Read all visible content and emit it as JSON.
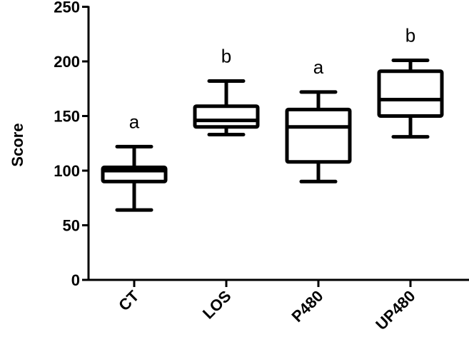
{
  "chart_data": {
    "type": "box",
    "title": "",
    "xlabel": "",
    "ylabel": "Score",
    "ylim": [
      0,
      250
    ],
    "yticks": [
      0,
      50,
      100,
      150,
      200,
      250
    ],
    "grid": false,
    "legend": null,
    "categories": [
      "CT",
      "LOS",
      "P480",
      "UP480"
    ],
    "series": [
      {
        "name": "CT",
        "whisker_low": 64,
        "q1": 90,
        "median": 100,
        "q3": 103,
        "whisker_high": 122,
        "significance": "a"
      },
      {
        "name": "LOS",
        "whisker_low": 133,
        "q1": 140,
        "median": 146,
        "q3": 159,
        "whisker_high": 182,
        "significance": "b"
      },
      {
        "name": "P480",
        "whisker_low": 90,
        "q1": 108,
        "median": 140,
        "q3": 156,
        "whisker_high": 172,
        "significance": "a"
      },
      {
        "name": "UP480",
        "whisker_low": 131,
        "q1": 150,
        "median": 165,
        "q3": 191,
        "whisker_high": 201,
        "significance": "b"
      }
    ],
    "colors": {
      "stroke": "#000000",
      "fill": "#ffffff"
    }
  }
}
